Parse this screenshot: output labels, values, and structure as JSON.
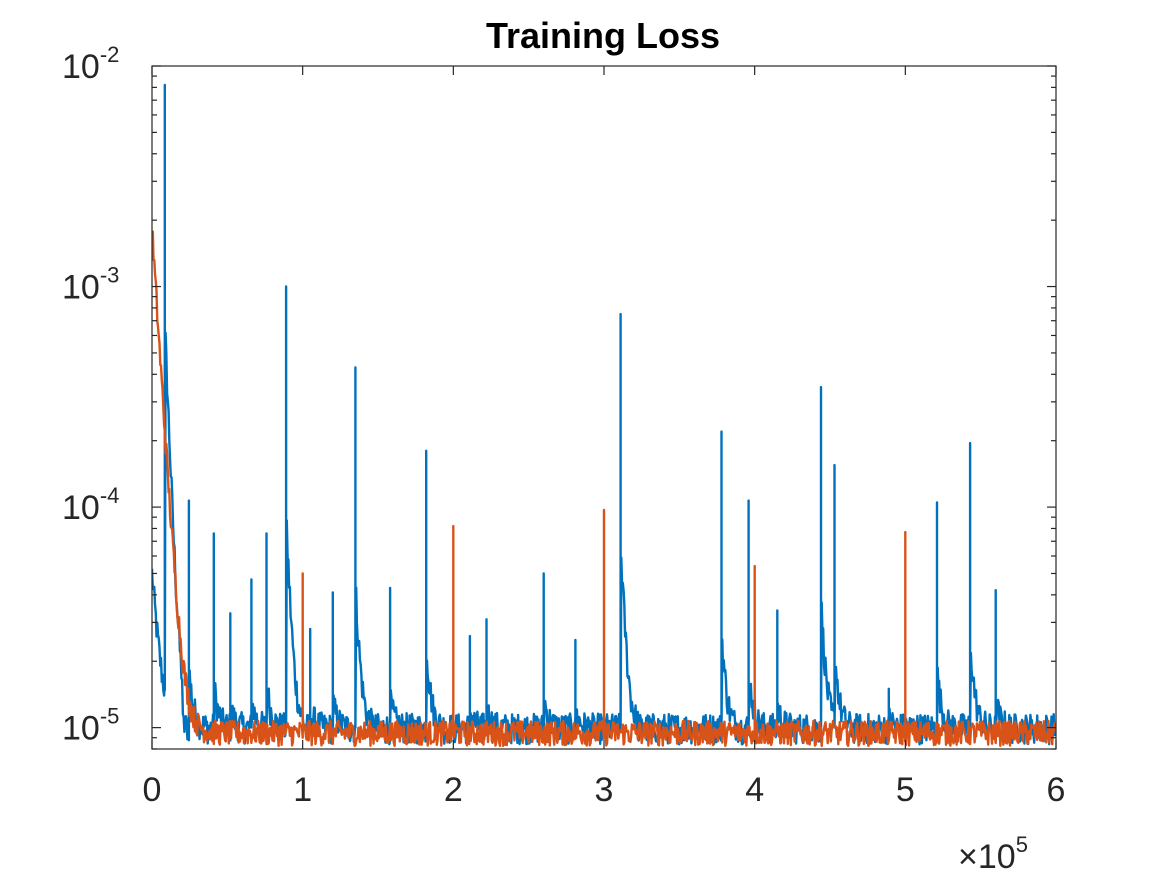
{
  "chart_data": {
    "type": "line",
    "title": "Training Loss",
    "xlabel": "",
    "ylabel": "",
    "x_scale_label": "×10",
    "x_scale_exponent": "5",
    "xlim": [
      0,
      600000
    ],
    "ylim": [
      8e-06,
      0.01
    ],
    "yscale": "log",
    "grid": false,
    "x_ticks": [
      {
        "value": 0,
        "label": "0"
      },
      {
        "value": 100000,
        "label": "1"
      },
      {
        "value": 200000,
        "label": "2"
      },
      {
        "value": 300000,
        "label": "3"
      },
      {
        "value": 400000,
        "label": "4"
      },
      {
        "value": 500000,
        "label": "5"
      },
      {
        "value": 600000,
        "label": "6"
      }
    ],
    "y_ticks": [
      {
        "value": 1e-05,
        "base": "10",
        "exp": "-5"
      },
      {
        "value": 0.0001,
        "base": "10",
        "exp": "-4"
      },
      {
        "value": 0.001,
        "base": "10",
        "exp": "-3"
      },
      {
        "value": 0.01,
        "base": "10",
        "exp": "-2"
      }
    ],
    "series": [
      {
        "color": "#0072BD",
        "initial_value": 4e-05,
        "decay_value": 1e-05,
        "baseline": 9.5e-06,
        "spikes": [
          {
            "x": 8500,
            "y": 0.0082
          },
          {
            "x": 24500,
            "y": 0.000107
          },
          {
            "x": 41000,
            "y": 7.6e-05
          },
          {
            "x": 52000,
            "y": 3.3e-05
          },
          {
            "x": 66000,
            "y": 4.7e-05
          },
          {
            "x": 76000,
            "y": 7.6e-05
          },
          {
            "x": 89000,
            "y": 0.001
          },
          {
            "x": 105000,
            "y": 2.8e-05
          },
          {
            "x": 120000,
            "y": 4.1e-05
          },
          {
            "x": 135000,
            "y": 0.00043
          },
          {
            "x": 158000,
            "y": 4.3e-05
          },
          {
            "x": 182000,
            "y": 0.00018
          },
          {
            "x": 211000,
            "y": 2.6e-05
          },
          {
            "x": 222000,
            "y": 3.1e-05
          },
          {
            "x": 260000,
            "y": 5e-05
          },
          {
            "x": 281000,
            "y": 2.5e-05
          },
          {
            "x": 311000,
            "y": 0.00075
          },
          {
            "x": 378000,
            "y": 0.00022
          },
          {
            "x": 396000,
            "y": 0.000107
          },
          {
            "x": 415000,
            "y": 3.4e-05
          },
          {
            "x": 444000,
            "y": 0.00035
          },
          {
            "x": 453000,
            "y": 0.000155
          },
          {
            "x": 489000,
            "y": 1.5e-05
          },
          {
            "x": 521000,
            "y": 0.000105
          },
          {
            "x": 543000,
            "y": 0.000195
          },
          {
            "x": 560000,
            "y": 4.2e-05
          }
        ]
      },
      {
        "color": "#D95319",
        "initial_value": 0.0018,
        "decay_value": 9.5e-06,
        "baseline": 9.1e-06,
        "spikes": [
          {
            "x": 100000,
            "y": 5e-05
          },
          {
            "x": 200000,
            "y": 8.2e-05
          },
          {
            "x": 300000,
            "y": 9.7e-05
          },
          {
            "x": 400000,
            "y": 5.4e-05
          },
          {
            "x": 500000,
            "y": 7.7e-05
          }
        ]
      }
    ]
  }
}
